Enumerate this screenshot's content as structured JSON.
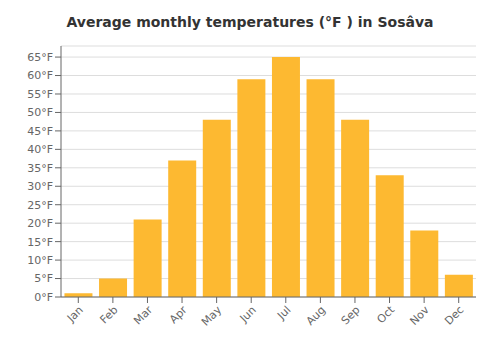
{
  "chart_data": {
    "type": "bar",
    "title": "Average monthly temperatures (°F ) in Sosâ​va",
    "categories": [
      "Jan",
      "Feb",
      "Mar",
      "Apr",
      "May",
      "Jun",
      "Jul",
      "Aug",
      "Sep",
      "Oct",
      "Nov",
      "Dec"
    ],
    "values": [
      1,
      5,
      21,
      37,
      48,
      59,
      65,
      59,
      48,
      33,
      18,
      6
    ],
    "color": "#FDB931",
    "ylim": [
      0,
      68
    ],
    "yticks": [
      {
        "value": 0,
        "label": "0°F"
      },
      {
        "value": 5,
        "label": "5°F"
      },
      {
        "value": 10,
        "label": "10°F"
      },
      {
        "value": 15,
        "label": "15°F"
      },
      {
        "value": 20,
        "label": "20°F"
      },
      {
        "value": 25,
        "label": "25°F"
      },
      {
        "value": 30,
        "label": "30°F"
      },
      {
        "value": 35,
        "label": "35°F"
      },
      {
        "value": 40,
        "label": "40°F"
      },
      {
        "value": 45,
        "label": "45°F"
      },
      {
        "value": 50,
        "label": "50°F"
      },
      {
        "value": 55,
        "label": "55°F"
      },
      {
        "value": 60,
        "label": "60°F"
      },
      {
        "value": 65,
        "label": "65°F"
      }
    ],
    "grid": true
  }
}
